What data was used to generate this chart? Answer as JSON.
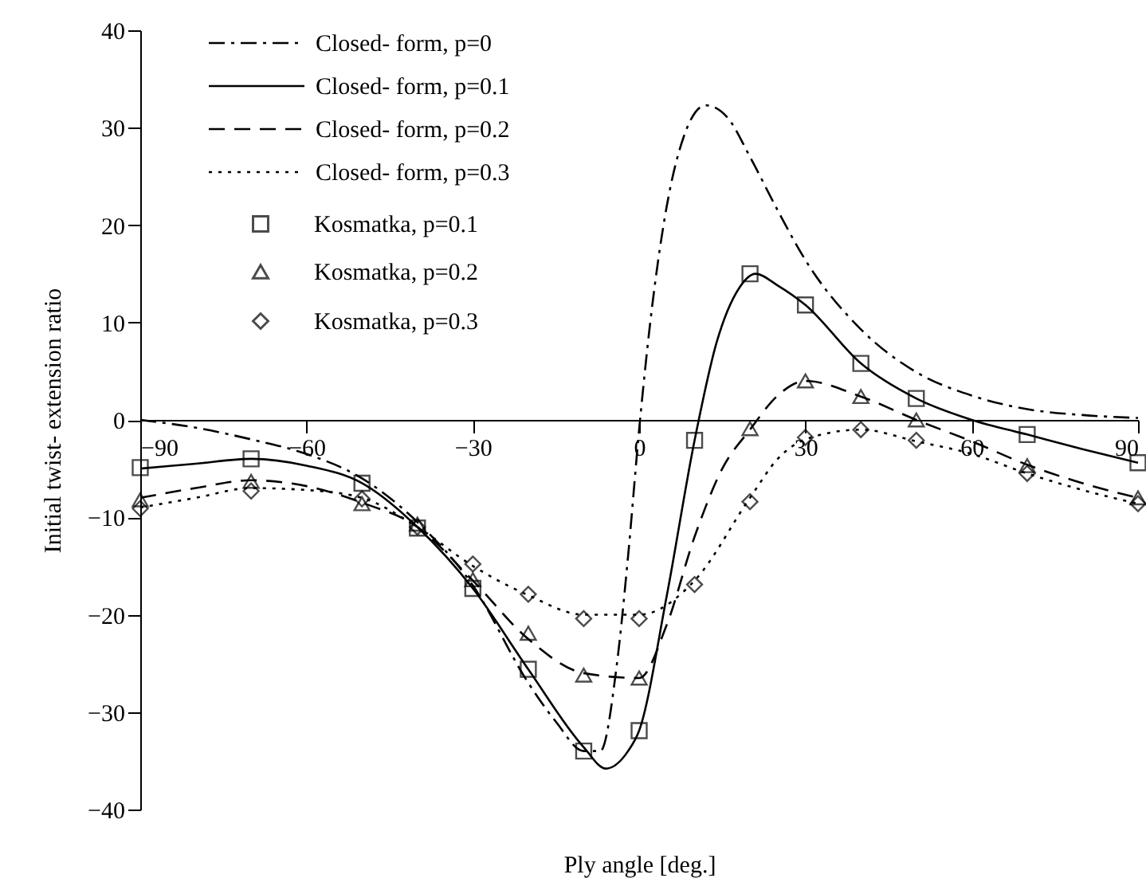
{
  "chart_data": {
    "type": "line",
    "xlabel": "Ply angle [deg.]",
    "ylabel": "Initial twist- extension ratio",
    "xlim": [
      -90,
      90
    ],
    "xticks": [
      -90,
      -60,
      -30,
      0,
      30,
      60,
      90
    ],
    "ylim": [
      -40,
      40
    ],
    "yticks": [
      -40,
      -30,
      -20,
      -10,
      0,
      10,
      20,
      30,
      40
    ],
    "grid": false,
    "legend": "top left",
    "series": [
      {
        "name": "Closed- form, p=0",
        "type": "line",
        "line_style": "dashdot",
        "color": "#000000",
        "x": [
          -90,
          -80,
          -70,
          -60,
          -50,
          -40,
          -30,
          -20,
          -15,
          -10,
          -7,
          -4,
          -2,
          0,
          2,
          5,
          8,
          12,
          16,
          20,
          25,
          30,
          40,
          50,
          60,
          70,
          80,
          90
        ],
        "values": [
          0,
          -0.8,
          -2,
          -3.5,
          -6,
          -10.5,
          -17,
          -27,
          -31,
          -34,
          -34,
          -25,
          -14,
          -1,
          10,
          22,
          29,
          32.3,
          31,
          27,
          21.5,
          16.4,
          9.3,
          4.9,
          2.5,
          1.1,
          0.5,
          0.2
        ]
      },
      {
        "name": "Closed- form, p=0.1",
        "type": "line",
        "line_style": "solid",
        "color": "#000000",
        "x": [
          -90,
          -80,
          -70,
          -60,
          -50,
          -40,
          -30,
          -20,
          -10,
          -6,
          -2,
          0,
          5,
          10,
          14,
          18,
          21,
          25,
          30,
          40,
          50,
          60,
          70,
          80,
          90
        ],
        "values": [
          -5,
          -4.5,
          -4,
          -4.7,
          -6.5,
          -11,
          -17.3,
          -25.6,
          -33.6,
          -35.8,
          -34,
          -31.9,
          -18,
          -2.1,
          8,
          13.5,
          15,
          13.8,
          11.8,
          5.8,
          2.2,
          0,
          -1.5,
          -3,
          -4.4
        ]
      },
      {
        "name": "Closed- form, p=0.2",
        "type": "line",
        "line_style": "dashed",
        "color": "#000000",
        "x": [
          -90,
          -80,
          -70,
          -60,
          -50,
          -40,
          -30,
          -20,
          -10,
          0,
          5,
          10,
          15,
          20,
          25,
          30,
          40,
          50,
          60,
          70,
          80,
          90
        ],
        "values": [
          -8,
          -7,
          -6.2,
          -6.8,
          -8.5,
          -11,
          -16.5,
          -22.5,
          -26,
          -26.5,
          -21,
          -12,
          -5,
          -1,
          2.5,
          4,
          2.4,
          0,
          -2.2,
          -4.6,
          -6.5,
          -8
        ]
      },
      {
        "name": "Closed- form, p=0.3",
        "type": "line",
        "line_style": "dotted",
        "color": "#000000",
        "x": [
          -90,
          -80,
          -70,
          -60,
          -50,
          -40,
          -30,
          -20,
          -10,
          0,
          10,
          20,
          25,
          30,
          40,
          50,
          60,
          70,
          80,
          90
        ],
        "values": [
          -9,
          -8,
          -7,
          -7.2,
          -8,
          -11,
          -15,
          -18,
          -20,
          -20,
          -16.5,
          -8,
          -4,
          -2,
          -1,
          -2.2,
          -3.5,
          -5.5,
          -7.2,
          -8.6
        ]
      },
      {
        "name": "Kosmatka, p=0.1",
        "type": "scatter",
        "marker": "square",
        "color": "#000000",
        "x": [
          -90,
          -70,
          -50,
          -40,
          -30,
          -20,
          -10,
          0,
          10,
          20,
          30,
          40,
          50,
          70,
          90
        ],
        "values": [
          -4.9,
          -4,
          -6.5,
          -11.1,
          -17.3,
          -25.6,
          -34,
          -31.9,
          -2.1,
          15,
          11.8,
          5.8,
          2.2,
          -1.5,
          -4.4
        ]
      },
      {
        "name": "Kosmatka, p=0.2",
        "type": "scatter",
        "marker": "triangle",
        "color": "#000000",
        "x": [
          -90,
          -70,
          -50,
          -40,
          -30,
          -20,
          -10,
          0,
          20,
          30,
          40,
          50,
          70,
          90
        ],
        "values": [
          -8.2,
          -6.3,
          -8.6,
          -10.7,
          -16.4,
          -21.9,
          -26.2,
          -26.5,
          -0.9,
          4,
          2.4,
          0,
          -4.7,
          -8
        ]
      },
      {
        "name": "Kosmatka, p=0.3",
        "type": "scatter",
        "marker": "diamond",
        "color": "#000000",
        "x": [
          -90,
          -70,
          -50,
          -40,
          -30,
          -20,
          -10,
          0,
          10,
          20,
          30,
          40,
          50,
          70,
          90
        ],
        "values": [
          -9.1,
          -7.3,
          -8.1,
          -11,
          -14.8,
          -17.9,
          -20.4,
          -20.4,
          -16.9,
          -8.4,
          -1.8,
          -1,
          -2.1,
          -5.5,
          -8.6
        ]
      }
    ]
  }
}
